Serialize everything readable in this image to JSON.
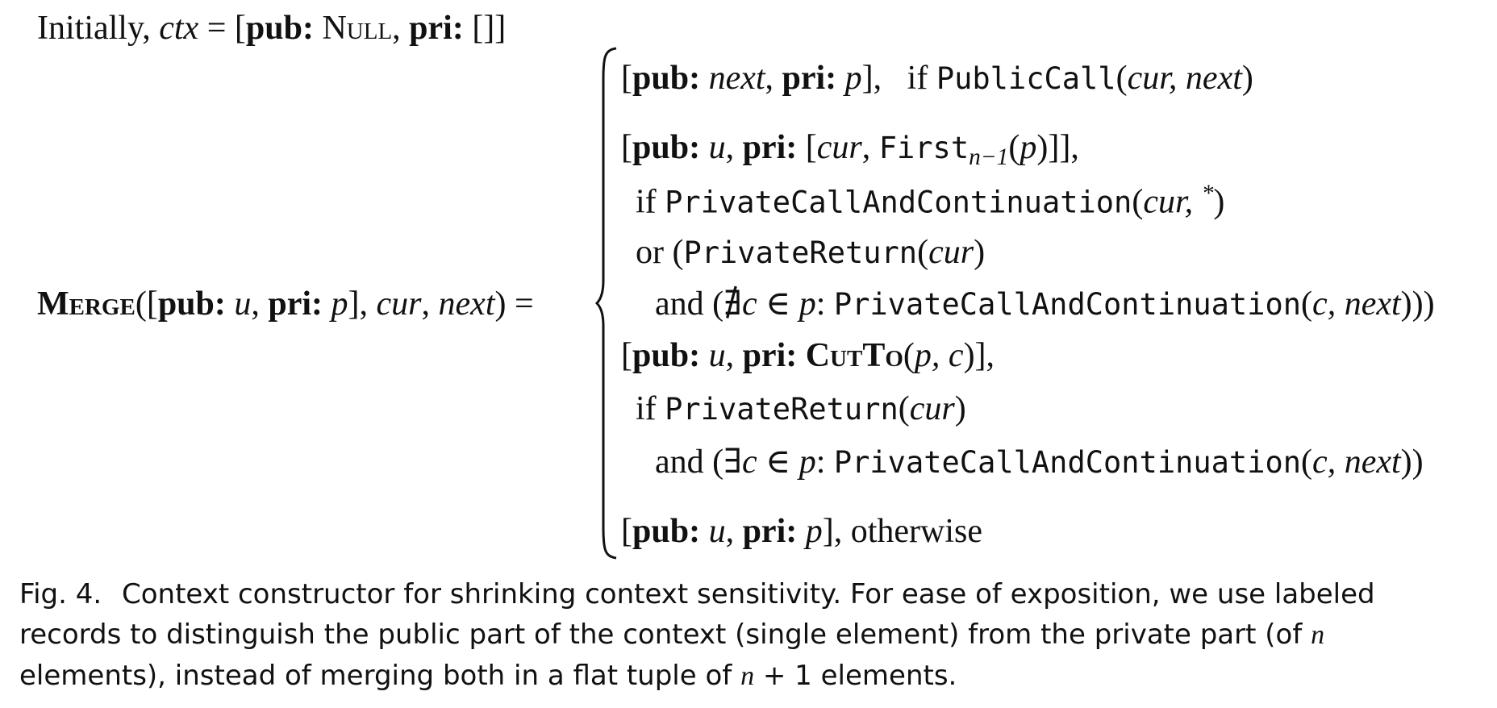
{
  "formula": {
    "initially": {
      "word": "Initially,",
      "ctx": "ctx",
      "eq": "=",
      "open": "[",
      "pub_label": "pub:",
      "null_val": "Null",
      "comma": ",",
      "pri_label": "pri:",
      "pri_val": "[]",
      "close": "]"
    },
    "merge": {
      "name": "Merge",
      "args_open": "([",
      "pub_label": "pub:",
      "u": "u",
      "comma1": ",",
      "pri_label": "pri:",
      "p": "p",
      "args_mid": "],",
      "cur": "cur",
      "comma2": ",",
      "next": "next",
      "args_close": ")",
      "eq": "="
    },
    "cases": [
      {
        "value": {
          "open": "[",
          "pub_label": "pub:",
          "pub_val": "next",
          "comma": ",",
          "pri_label": "pri:",
          "pri_val": "p",
          "close": "],"
        },
        "cond": {
          "kw": "if",
          "fn": "PublicCall",
          "open": "(",
          "args": "cur, next",
          "close": ")"
        }
      },
      {
        "value": {
          "open": "[",
          "pub_label": "pub:",
          "pub_val": "u",
          "comma": ",",
          "pri_label": "pri:",
          "bracket_open": "[",
          "cur": "cur",
          "comma2": ",",
          "fn": "First",
          "sub": "n−1",
          "paren_open": "(",
          "p": "p",
          "paren_close": ")",
          "close": "]],"
        },
        "cond_if": {
          "kw": "if",
          "fn": "PrivateCallAndContinuation",
          "open": "(",
          "arg": "cur,",
          "star": "*",
          "close": ")"
        },
        "cond_or": {
          "kw": "or (",
          "fn": "PrivateReturn",
          "open": "(",
          "arg": "cur",
          "close": ")"
        },
        "cond_and": {
          "kw": "and (",
          "quant": "∄",
          "var": "c",
          "in": "∈",
          "set": "p",
          "colon": ":",
          "fn": "PrivateCallAndContinuation",
          "open": "(",
          "args": "c, next",
          "close": ")))"
        }
      },
      {
        "value": {
          "open": "[",
          "pub_label": "pub:",
          "pub_val": "u",
          "comma": ",",
          "pri_label": "pri:",
          "fn": "CutTo",
          "paren_open": "(",
          "args": "p, c",
          "close": ")],"
        },
        "cond_if": {
          "kw": "if",
          "fn": "PrivateReturn",
          "open": "(",
          "arg": "cur",
          "close": ")"
        },
        "cond_and": {
          "kw": "and (",
          "quant": "∃",
          "var": "c",
          "in": "∈",
          "set": "p",
          "colon": ":",
          "fn": "PrivateCallAndContinuation",
          "open": "(",
          "args": "c, next",
          "close": "))"
        }
      },
      {
        "value": {
          "open": "[",
          "pub_label": "pub:",
          "pub_val": "u",
          "comma": ",",
          "pri_label": "pri:",
          "pri_val": "p",
          "close": "],",
          "otherwise": "otherwise"
        }
      }
    ]
  },
  "caption": {
    "label": "Fig. 4.",
    "text_before_n1": "Context constructor for shrinking context sensitivity. For ease of exposition, we use labeled records to distinguish the public part of the context (single element) from the private part (of",
    "n1": "n",
    "text_between": "elements), instead of merging both in a flat tuple of",
    "n2": "n",
    "text_plus": "+ 1 elements."
  }
}
